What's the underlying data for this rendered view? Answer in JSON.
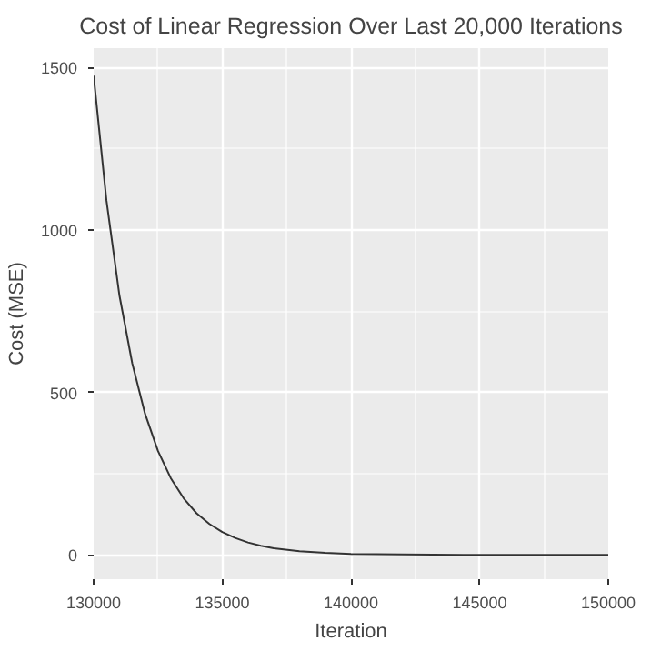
{
  "chart_data": {
    "type": "line",
    "title": "Cost of Linear Regression Over Last 20,000 Iterations",
    "xlabel": "Iteration",
    "ylabel": "Cost (MSE)",
    "x": [
      130000,
      130500,
      131000,
      131500,
      132000,
      132500,
      133000,
      133500,
      134000,
      134500,
      135000,
      135500,
      136000,
      136500,
      137000,
      138000,
      139000,
      140000,
      142000,
      145000,
      150000
    ],
    "series": [
      {
        "color": "#333333",
        "values": [
          1475,
          1090,
          800,
          590,
          434,
          320,
          236,
          174,
          128,
          95,
          70,
          52,
          38,
          28,
          20,
          11,
          6,
          3,
          1,
          0,
          0
        ]
      }
    ],
    "xlim": [
      130000,
      150000
    ],
    "ylim": [
      -75,
      1560
    ],
    "xticks": [
      130000,
      135000,
      140000,
      145000,
      150000
    ],
    "yticks": [
      0,
      500,
      1000,
      1500
    ],
    "grid": true
  }
}
